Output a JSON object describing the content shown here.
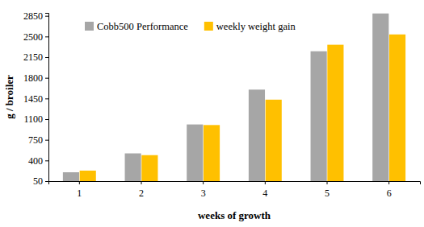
{
  "chart_data": {
    "type": "bar",
    "x_label": "weeks of growth",
    "y_label": "g / broiler",
    "categories": [
      "1",
      "2",
      "3",
      "4",
      "5",
      "6"
    ],
    "series": [
      {
        "name": "Cobb500 Performance",
        "color": "#a6a6a6",
        "values": [
          200,
          520,
          1010,
          1600,
          2250,
          2890
        ]
      },
      {
        "name": "weekly weight gain",
        "color": "#ffc000",
        "values": [
          228,
          490,
          1000,
          1430,
          2360,
          2535
        ]
      }
    ],
    "ylim": [
      50,
      2900
    ],
    "yticks": [
      50,
      400,
      750,
      1100,
      1450,
      1800,
      2150,
      2500,
      2850
    ],
    "grid": false,
    "legend": "top-left"
  }
}
